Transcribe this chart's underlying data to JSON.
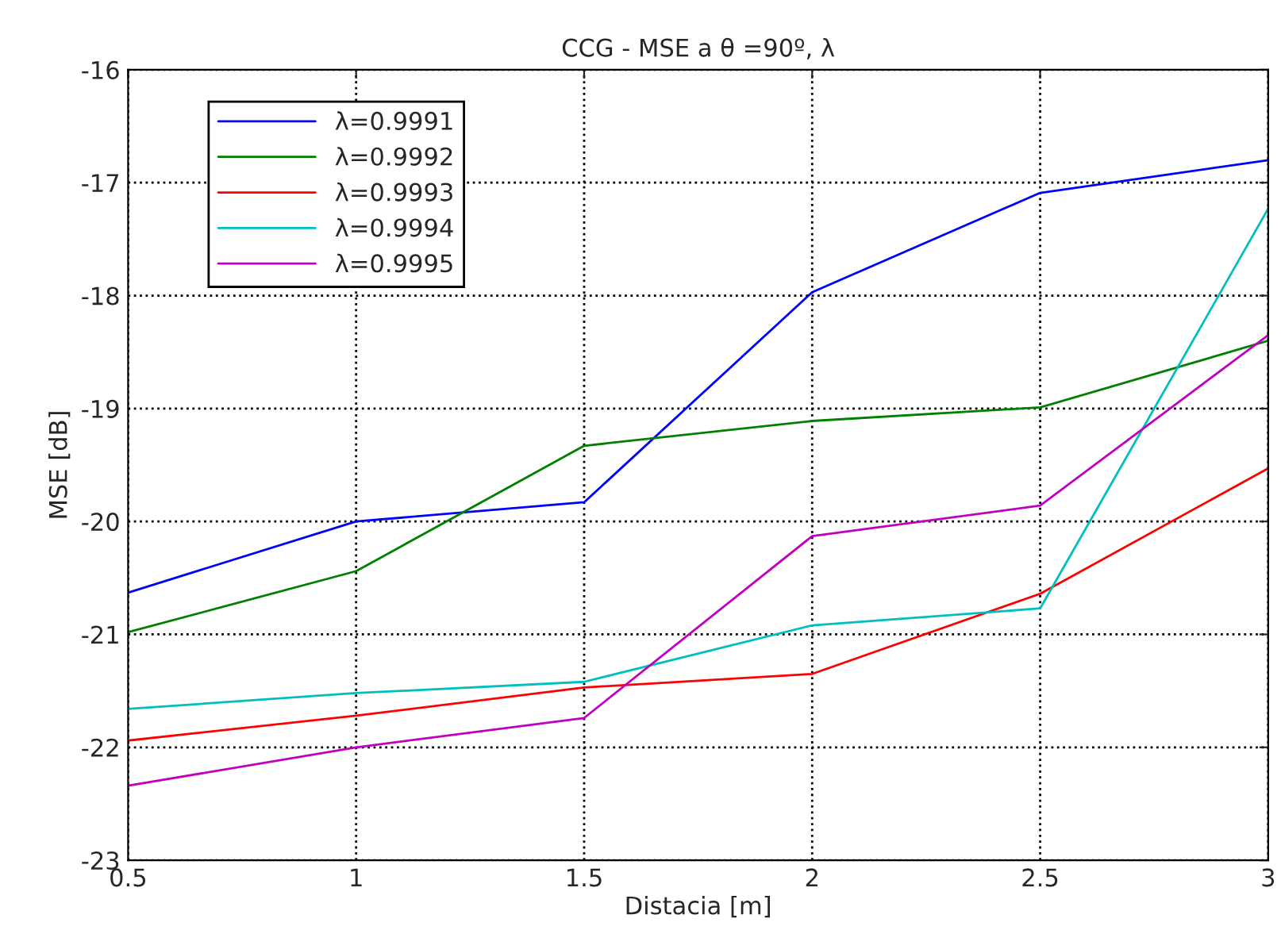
{
  "chart_data": {
    "type": "line",
    "title": "CCG - MSE a θ =90º, λ",
    "xlabel": "Distacia [m]",
    "ylabel": "MSE [dB]",
    "x": [
      0.5,
      1,
      1.5,
      2,
      2.5,
      3
    ],
    "series": [
      {
        "name": "λ=0.9991",
        "color": "#0000ff",
        "values": [
          -20.63,
          -20.0,
          -19.83,
          -17.97,
          -17.09,
          -16.8
        ]
      },
      {
        "name": "λ=0.9992",
        "color": "#008000",
        "values": [
          -20.98,
          -20.44,
          -19.33,
          -19.11,
          -18.99,
          -18.4
        ]
      },
      {
        "name": "λ=0.9993",
        "color": "#ff0000",
        "values": [
          -21.94,
          -21.72,
          -21.47,
          -21.35,
          -20.64,
          -19.53
        ]
      },
      {
        "name": "λ=0.9994",
        "color": "#00bfbf",
        "values": [
          -21.66,
          -21.52,
          -21.42,
          -20.92,
          -20.77,
          -17.23
        ]
      },
      {
        "name": "λ=0.9995",
        "color": "#bf00bf",
        "values": [
          -22.34,
          -22.0,
          -21.74,
          -20.13,
          -19.86,
          -18.35
        ]
      }
    ],
    "xlim": [
      0.5,
      3
    ],
    "xticks": [
      0.5,
      1,
      1.5,
      2,
      2.5,
      3
    ],
    "ylim": [
      -23,
      -16
    ],
    "yticks": [
      -23,
      -22,
      -21,
      -20,
      -19,
      -18,
      -17,
      -16
    ],
    "grid": true,
    "legend": "top left",
    "marker": "none",
    "line_style": "solid"
  }
}
